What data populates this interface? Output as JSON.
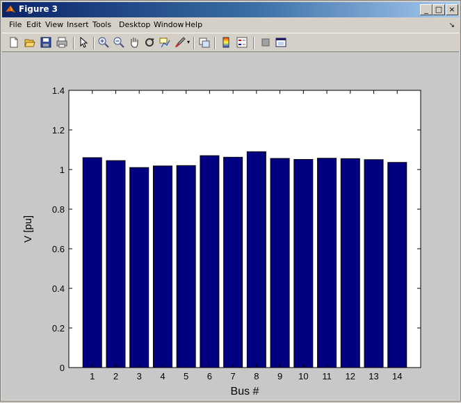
{
  "window": {
    "title": "Figure 3"
  },
  "menu": [
    "File",
    "Edit",
    "View",
    "Insert",
    "Tools",
    "Desktop",
    "Window",
    "Help"
  ],
  "toolbar_icons": [
    "new-figure-icon",
    "open-file-icon",
    "save-icon",
    "print-icon",
    "pointer-icon",
    "zoom-in-icon",
    "zoom-out-icon",
    "pan-hand-icon",
    "rotate-3d-icon",
    "data-cursor-icon",
    "brush-icon",
    "link-plot-icon",
    "colorbar-icon",
    "legend-icon",
    "hide-plot-tools-icon",
    "show-plot-tools-icon"
  ],
  "colors": {
    "bar": "#000080",
    "plot_bg": "#ffffff",
    "figure_bg": "#c8c8c8"
  },
  "chart_data": {
    "type": "bar",
    "categories": [
      "1",
      "2",
      "3",
      "4",
      "5",
      "6",
      "7",
      "8",
      "9",
      "10",
      "11",
      "12",
      "13",
      "14"
    ],
    "values": [
      1.06,
      1.045,
      1.01,
      1.018,
      1.02,
      1.07,
      1.062,
      1.09,
      1.056,
      1.051,
      1.057,
      1.055,
      1.05,
      1.036
    ],
    "xlabel": "Bus #",
    "ylabel": "V [pu]",
    "ylim": [
      0,
      1.4
    ],
    "yticks": [
      "0",
      "0.2",
      "0.4",
      "0.6",
      "0.8",
      "1",
      "1.2",
      "1.4"
    ],
    "grid": false
  }
}
